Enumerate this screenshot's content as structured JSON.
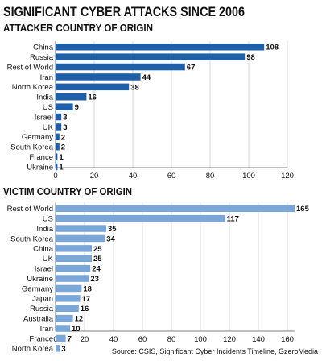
{
  "title": "SIGNIFICANT CYBER ATTACKS SINCE 2006",
  "source": "Source: CSIS, Significant Cyber Incidents Timeline, GzeroMedia",
  "colors": {
    "attacker": "#1f5fa8",
    "victim": "#7ba7d8",
    "text": "#111111",
    "grid": "#c8c8c8"
  },
  "chart_data": [
    {
      "type": "bar",
      "orientation": "horizontal",
      "title": "ATTACKER COUNTRY OF ORIGIN",
      "categories": [
        "China",
        "Russia",
        "Rest of World",
        "Iran",
        "North Korea",
        "India",
        "US",
        "Israel",
        "UK",
        "Germany",
        "South Korea",
        "France",
        "Ukraine"
      ],
      "values": [
        108,
        98,
        67,
        44,
        38,
        16,
        9,
        3,
        3,
        2,
        2,
        1,
        1
      ],
      "xlim": [
        0,
        120
      ],
      "xticks": [
        0,
        20,
        40,
        60,
        80,
        100,
        120
      ],
      "grid": true
    },
    {
      "type": "bar",
      "orientation": "horizontal",
      "title": "VICTIM COUNTRY OF ORIGIN",
      "categories": [
        "Rest of World",
        "US",
        "India",
        "South Korea",
        "China",
        "UK",
        "Israel",
        "Ukraine",
        "Germany",
        "Japan",
        "Russia",
        "Australia",
        "Iran",
        "France",
        "North Korea"
      ],
      "values": [
        165,
        117,
        35,
        34,
        25,
        25,
        24,
        23,
        18,
        17,
        16,
        12,
        10,
        7,
        3
      ],
      "xlim": [
        0,
        165
      ],
      "xticks": [
        0,
        20,
        40,
        60,
        80,
        100,
        120,
        140,
        160
      ],
      "grid": true
    }
  ]
}
